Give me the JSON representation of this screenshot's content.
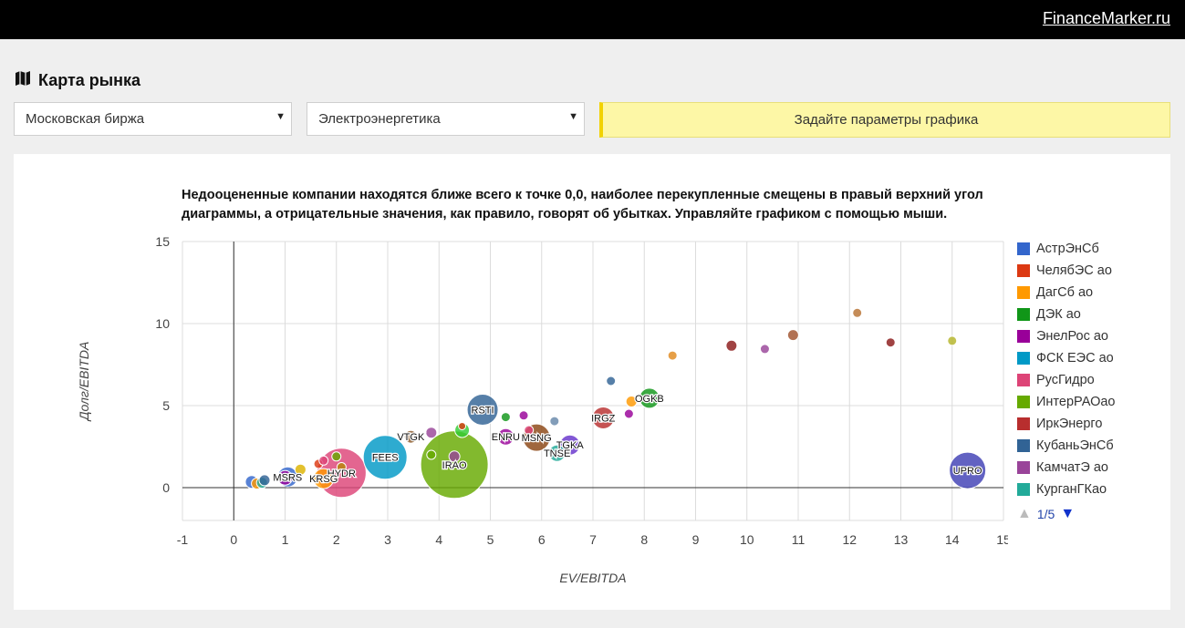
{
  "brand": "FinanceMarker.ru",
  "page": {
    "title": "Карта рынка",
    "icon": "map-icon"
  },
  "filters": {
    "exchange": "Московская биржа",
    "sector": "Электроэнергетика",
    "notice": "Задайте параметры графика"
  },
  "description": "Недооцененные компании находятся ближе всего к точке 0,0, наиболее перекупленные смещены в правый верхний угол диаграммы, а отрицательные значения, как правило, говорят об убытках. Управляйте графиком с помощью мыши.",
  "legend": {
    "page": "1/5",
    "items": [
      {
        "name": "АстрЭнСб",
        "color": "#3366cc"
      },
      {
        "name": "ЧелябЭС ао",
        "color": "#dc3912"
      },
      {
        "name": "ДагСб ао",
        "color": "#ff9900"
      },
      {
        "name": "ДЭК ао",
        "color": "#109618"
      },
      {
        "name": "ЭнелРос ао",
        "color": "#990099"
      },
      {
        "name": "ФСК ЕЭС ао",
        "color": "#0099c6"
      },
      {
        "name": "РусГидро",
        "color": "#dd4477"
      },
      {
        "name": "ИнтерРАОао",
        "color": "#66aa00"
      },
      {
        "name": "ИркЭнерго",
        "color": "#b82e2e"
      },
      {
        "name": "КубаньЭнСб",
        "color": "#316395"
      },
      {
        "name": "КамчатЭ ао",
        "color": "#994499"
      },
      {
        "name": "КурганГКао",
        "color": "#22aa99"
      }
    ]
  },
  "chart_data": {
    "type": "scatter",
    "xlabel": "EV/EBITDA",
    "ylabel": "Долг/EBITDA",
    "xlim": [
      -1,
      15
    ],
    "ylim": [
      -2,
      15
    ],
    "xticks": [
      -1,
      0,
      1,
      2,
      3,
      4,
      5,
      6,
      7,
      8,
      9,
      10,
      11,
      12,
      13,
      14,
      15
    ],
    "yticks": [
      0,
      5,
      10,
      15
    ],
    "grid": true,
    "legend_position": "right",
    "points": [
      {
        "x": 0.35,
        "y": 0.35,
        "size": 7,
        "color": "#3366cc",
        "label": ""
      },
      {
        "x": 0.45,
        "y": 0.25,
        "size": 6,
        "color": "#ff9900",
        "label": ""
      },
      {
        "x": 0.55,
        "y": 0.3,
        "size": 6,
        "color": "#22aa99",
        "label": ""
      },
      {
        "x": 0.6,
        "y": 0.45,
        "size": 6,
        "color": "#316395",
        "label": ""
      },
      {
        "x": 1.05,
        "y": 0.65,
        "size": 11,
        "color": "#3366cc",
        "label": "MSRS"
      },
      {
        "x": 1.0,
        "y": 0.6,
        "size": 8,
        "color": "#990099",
        "label": ""
      },
      {
        "x": 1.3,
        "y": 1.1,
        "size": 6,
        "color": "#ddb300",
        "label": ""
      },
      {
        "x": 1.65,
        "y": 1.45,
        "size": 5,
        "color": "#dc3912",
        "label": ""
      },
      {
        "x": 1.75,
        "y": 0.55,
        "size": 11,
        "color": "#ff9900",
        "label": "KRSG"
      },
      {
        "x": 1.75,
        "y": 1.65,
        "size": 5,
        "color": "#dd4477",
        "label": ""
      },
      {
        "x": 2.0,
        "y": 1.9,
        "size": 5,
        "color": "#66aa00",
        "label": ""
      },
      {
        "x": 2.1,
        "y": 0.9,
        "size": 27,
        "color": "#dd4477",
        "label": "HYDR"
      },
      {
        "x": 2.1,
        "y": 1.25,
        "size": 5,
        "color": "#b8860b",
        "label": ""
      },
      {
        "x": 2.95,
        "y": 1.85,
        "size": 24,
        "color": "#0099c6",
        "label": "FEES"
      },
      {
        "x": 3.45,
        "y": 3.1,
        "size": 7,
        "color": "#8b5a2b",
        "label": "VTGK"
      },
      {
        "x": 3.85,
        "y": 3.35,
        "size": 6,
        "color": "#994499",
        "label": ""
      },
      {
        "x": 3.85,
        "y": 2.0,
        "size": 5,
        "color": "#66aa00",
        "label": ""
      },
      {
        "x": 4.3,
        "y": 1.4,
        "size": 37,
        "color": "#66aa00",
        "label": "IRAO"
      },
      {
        "x": 4.3,
        "y": 1.9,
        "size": 6,
        "color": "#994499",
        "label": ""
      },
      {
        "x": 4.45,
        "y": 3.5,
        "size": 8,
        "color": "#33cc33",
        "label": ""
      },
      {
        "x": 4.45,
        "y": 3.75,
        "size": 4,
        "color": "#dc3912",
        "label": ""
      },
      {
        "x": 4.85,
        "y": 4.75,
        "size": 17,
        "color": "#316395",
        "label": "RSTI"
      },
      {
        "x": 5.3,
        "y": 4.3,
        "size": 5,
        "color": "#109618",
        "label": ""
      },
      {
        "x": 5.3,
        "y": 3.1,
        "size": 9,
        "color": "#990099",
        "label": "ENRU"
      },
      {
        "x": 5.65,
        "y": 4.4,
        "size": 5,
        "color": "#990099",
        "label": ""
      },
      {
        "x": 5.75,
        "y": 3.5,
        "size": 5,
        "color": "#dd4477",
        "label": ""
      },
      {
        "x": 5.9,
        "y": 3.05,
        "size": 15,
        "color": "#8b4513",
        "label": "MSNG"
      },
      {
        "x": 6.25,
        "y": 4.05,
        "size": 5,
        "color": "#6688aa",
        "label": ""
      },
      {
        "x": 6.3,
        "y": 2.1,
        "size": 9,
        "color": "#22aa99",
        "label": "TNSE"
      },
      {
        "x": 6.55,
        "y": 2.6,
        "size": 11,
        "color": "#6633cc",
        "label": "TGKA"
      },
      {
        "x": 7.2,
        "y": 4.25,
        "size": 12,
        "color": "#b82e2e",
        "label": "IRGZ"
      },
      {
        "x": 7.35,
        "y": 6.5,
        "size": 5,
        "color": "#316395",
        "label": ""
      },
      {
        "x": 7.7,
        "y": 4.5,
        "size": 5,
        "color": "#990099",
        "label": ""
      },
      {
        "x": 7.75,
        "y": 5.25,
        "size": 6,
        "color": "#ff9900",
        "label": ""
      },
      {
        "x": 8.1,
        "y": 5.45,
        "size": 11,
        "color": "#109618",
        "label": "OGKB"
      },
      {
        "x": 8.55,
        "y": 8.05,
        "size": 5,
        "color": "#e08a1e",
        "label": ""
      },
      {
        "x": 9.7,
        "y": 8.65,
        "size": 6,
        "color": "#8b1a1a",
        "label": ""
      },
      {
        "x": 10.35,
        "y": 8.45,
        "size": 5,
        "color": "#994499",
        "label": ""
      },
      {
        "x": 10.9,
        "y": 9.3,
        "size": 6,
        "color": "#a0522d",
        "label": ""
      },
      {
        "x": 12.15,
        "y": 10.65,
        "size": 5,
        "color": "#b87333",
        "label": ""
      },
      {
        "x": 12.8,
        "y": 8.85,
        "size": 5,
        "color": "#8b1a1a",
        "label": ""
      },
      {
        "x": 14.0,
        "y": 8.95,
        "size": 5,
        "color": "#b5b52a",
        "label": ""
      },
      {
        "x": 14.3,
        "y": 1.05,
        "size": 20,
        "color": "#3f3fb5",
        "label": "UPRO"
      }
    ]
  }
}
